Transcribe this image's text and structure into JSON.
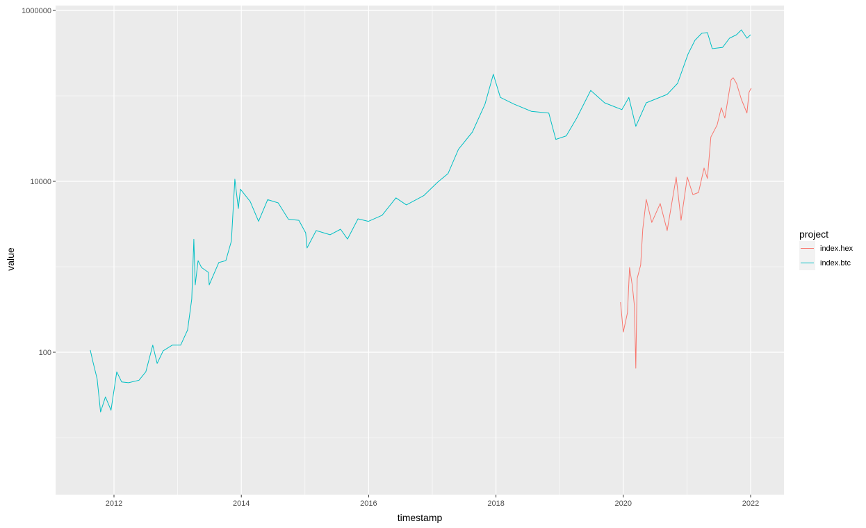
{
  "chart_data": {
    "type": "line",
    "xlabel": "timestamp",
    "ylabel": "value",
    "x_type": "date",
    "y_scale": "log10",
    "xlim": [
      "2011-03-15",
      "2022-05-20"
    ],
    "ylim": [
      3.7,
      1150000
    ],
    "x_ticks": [
      "2012",
      "2014",
      "2016",
      "2018",
      "2020",
      "2022"
    ],
    "y_ticks": [
      {
        "value": 100,
        "label": "100"
      },
      {
        "value": 10000,
        "label": "10000"
      },
      {
        "value": 1000000,
        "label": "1000000"
      }
    ],
    "grid": true,
    "background": "#EBEBEB",
    "legend": {
      "title": "project",
      "position": "right"
    },
    "series": [
      {
        "name": "index.hex",
        "color": "#F8766D",
        "points": [
          [
            "2019-12-16",
            385
          ],
          [
            "2020-01-01",
            172
          ],
          [
            "2020-01-25",
            290
          ],
          [
            "2020-02-06",
            980
          ],
          [
            "2020-02-22",
            600
          ],
          [
            "2020-03-05",
            350
          ],
          [
            "2020-03-13",
            65
          ],
          [
            "2020-03-21",
            730
          ],
          [
            "2020-04-10",
            1050
          ],
          [
            "2020-04-22",
            2750
          ],
          [
            "2020-05-12",
            6150
          ],
          [
            "2020-06-13",
            3300
          ],
          [
            "2020-07-31",
            5500
          ],
          [
            "2020-09-09",
            2650
          ],
          [
            "2020-10-31",
            11200
          ],
          [
            "2020-11-28",
            3500
          ],
          [
            "2021-01-03",
            11200
          ],
          [
            "2021-02-04",
            7000
          ],
          [
            "2021-03-08",
            7400
          ],
          [
            "2021-04-09",
            14300
          ],
          [
            "2021-04-28",
            10800
          ],
          [
            "2021-05-18",
            33000
          ],
          [
            "2021-06-23",
            45600
          ],
          [
            "2021-07-17",
            72800
          ],
          [
            "2021-08-06",
            55000
          ],
          [
            "2021-09-11",
            154000
          ],
          [
            "2021-09-23",
            163000
          ],
          [
            "2021-10-12",
            140000
          ],
          [
            "2021-11-09",
            91000
          ],
          [
            "2021-12-11",
            63000
          ],
          [
            "2021-12-23",
            110000
          ],
          [
            "2022-01-04",
            123000
          ]
        ]
      },
      {
        "name": "index.btc",
        "color": "#00BFC4",
        "points": [
          [
            "2011-08-18",
            106
          ],
          [
            "2011-09-02",
            78
          ],
          [
            "2011-09-26",
            49
          ],
          [
            "2011-10-16",
            20
          ],
          [
            "2011-11-13",
            30
          ],
          [
            "2011-12-15",
            21
          ],
          [
            "2012-01-17",
            59
          ],
          [
            "2012-02-14",
            45
          ],
          [
            "2012-03-25",
            44
          ],
          [
            "2012-05-24",
            47
          ],
          [
            "2012-07-02",
            59
          ],
          [
            "2012-08-11",
            121
          ],
          [
            "2012-09-05",
            74
          ],
          [
            "2012-10-10",
            104
          ],
          [
            "2012-12-01",
            121
          ],
          [
            "2013-01-18",
            121
          ],
          [
            "2013-02-27",
            182
          ],
          [
            "2013-03-23",
            420
          ],
          [
            "2013-04-04",
            2100
          ],
          [
            "2013-04-12",
            615
          ],
          [
            "2013-04-28",
            1180
          ],
          [
            "2013-05-18",
            980
          ],
          [
            "2013-06-27",
            860
          ],
          [
            "2013-07-01",
            615
          ],
          [
            "2013-08-25",
            1120
          ],
          [
            "2013-10-04",
            1180
          ],
          [
            "2013-11-05",
            2000
          ],
          [
            "2013-11-25",
            10600
          ],
          [
            "2013-12-15",
            4800
          ],
          [
            "2013-12-27",
            8100
          ],
          [
            "2014-02-21",
            5800
          ],
          [
            "2014-04-10",
            3400
          ],
          [
            "2014-06-01",
            6100
          ],
          [
            "2014-07-31",
            5600
          ],
          [
            "2014-09-28",
            3600
          ],
          [
            "2014-11-27",
            3500
          ],
          [
            "2015-01-05",
            2500
          ],
          [
            "2015-01-13",
            1660
          ],
          [
            "2015-03-06",
            2650
          ],
          [
            "2015-05-25",
            2370
          ],
          [
            "2015-07-24",
            2750
          ],
          [
            "2015-09-02",
            2110
          ],
          [
            "2015-11-01",
            3640
          ],
          [
            "2015-12-31",
            3400
          ],
          [
            "2016-03-18",
            4000
          ],
          [
            "2016-06-06",
            6400
          ],
          [
            "2016-08-05",
            5300
          ],
          [
            "2016-11-13",
            6800
          ],
          [
            "2017-02-01",
            9800
          ],
          [
            "2017-04-01",
            12300
          ],
          [
            "2017-05-31",
            23700
          ],
          [
            "2017-08-19",
            37800
          ],
          [
            "2017-10-30",
            80000
          ],
          [
            "2017-12-17",
            179000
          ],
          [
            "2018-01-26",
            96000
          ],
          [
            "2018-04-15",
            80000
          ],
          [
            "2018-07-23",
            66000
          ],
          [
            "2018-10-31",
            63000
          ],
          [
            "2018-12-10",
            31000
          ],
          [
            "2019-02-08",
            34000
          ],
          [
            "2019-04-09",
            55000
          ],
          [
            "2019-06-28",
            116000
          ],
          [
            "2019-09-16",
            83000
          ],
          [
            "2019-12-24",
            69000
          ],
          [
            "2020-02-02",
            96000
          ],
          [
            "2020-03-13",
            44000
          ],
          [
            "2020-05-12",
            83000
          ],
          [
            "2020-09-09",
            104000
          ],
          [
            "2020-11-08",
            140000
          ],
          [
            "2021-01-07",
            308000
          ],
          [
            "2021-02-16",
            447000
          ],
          [
            "2021-03-27",
            540000
          ],
          [
            "2021-04-28",
            550000
          ],
          [
            "2021-05-26",
            357000
          ],
          [
            "2021-07-25",
            370000
          ],
          [
            "2021-09-02",
            473000
          ],
          [
            "2021-10-12",
            519000
          ],
          [
            "2021-11-09",
            592000
          ],
          [
            "2021-12-11",
            473000
          ],
          [
            "2022-01-01",
            519000
          ]
        ]
      }
    ]
  }
}
